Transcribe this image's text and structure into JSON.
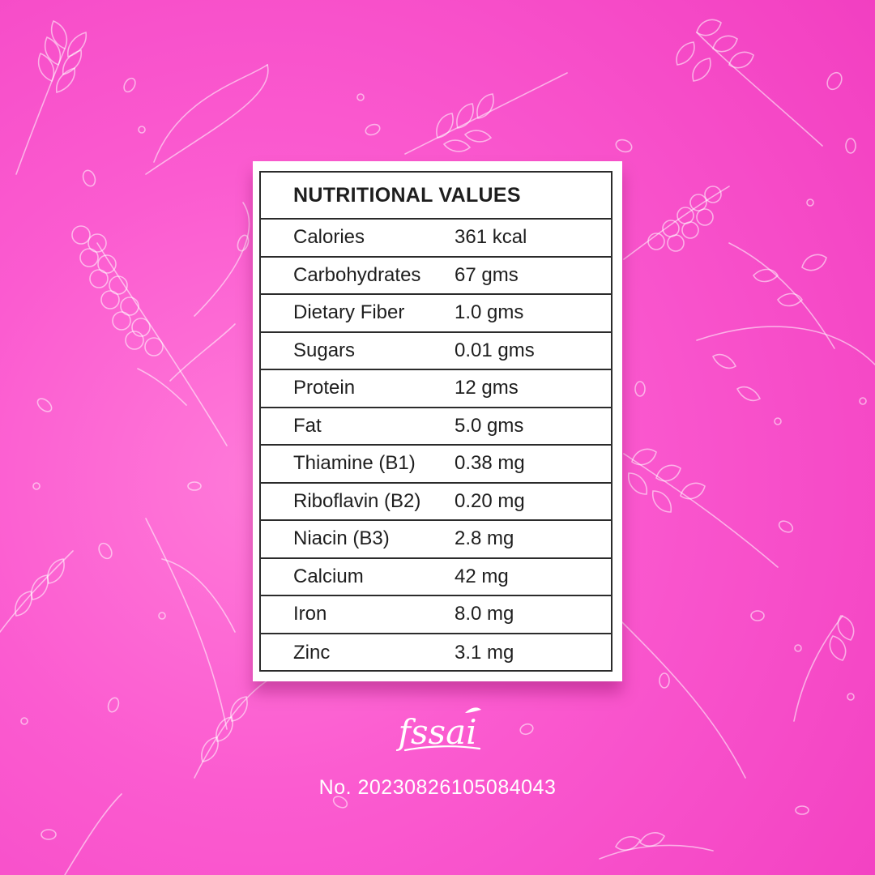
{
  "nutrition_table": {
    "title": "NUTRITIONAL VALUES",
    "rows": [
      {
        "name": "Calories",
        "value": "361 kcal"
      },
      {
        "name": "Carbohydrates",
        "value": "67 gms"
      },
      {
        "name": "Dietary Fiber",
        "value": "1.0 gms"
      },
      {
        "name": "Sugars",
        "value": "0.01 gms"
      },
      {
        "name": "Protein",
        "value": "12 gms"
      },
      {
        "name": "Fat",
        "value": "5.0 gms"
      },
      {
        "name": "Thiamine (B1)",
        "value": "0.38 mg"
      },
      {
        "name": "Riboflavin (B2)",
        "value": "0.20 mg"
      },
      {
        "name": "Niacin (B3)",
        "value": "2.8 mg"
      },
      {
        "name": "Calcium",
        "value": "42 mg"
      },
      {
        "name": "Iron",
        "value": "8.0 mg"
      },
      {
        "name": "Zinc",
        "value": "3.1 mg"
      }
    ]
  },
  "certification": {
    "logo_text": "fssai",
    "license_number": "No. 20230826105084043"
  },
  "colors": {
    "background": "#f94fcb",
    "card": "#ffffff",
    "text": "#1e1e1e",
    "pattern": "#ffffff"
  },
  "decorations": {
    "background_pattern": "wheat-grain-outline-icon"
  }
}
